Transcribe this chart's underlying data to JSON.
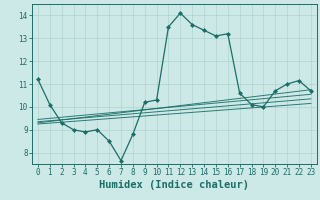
{
  "title": "",
  "xlabel": "Humidex (Indice chaleur)",
  "ylabel": "",
  "bg_color": "#cce9e7",
  "line_color": "#1a6e66",
  "xlim": [
    -0.5,
    23.5
  ],
  "ylim": [
    7.5,
    14.5
  ],
  "xticks": [
    0,
    1,
    2,
    3,
    4,
    5,
    6,
    7,
    8,
    9,
    10,
    11,
    12,
    13,
    14,
    15,
    16,
    17,
    18,
    19,
    20,
    21,
    22,
    23
  ],
  "yticks": [
    8,
    9,
    10,
    11,
    12,
    13,
    14
  ],
  "main_line_x": [
    0,
    1,
    2,
    3,
    4,
    5,
    6,
    7,
    8,
    9,
    10,
    11,
    12,
    13,
    14,
    15,
    16,
    17,
    18,
    19,
    20,
    21,
    22,
    23
  ],
  "main_line_y": [
    11.2,
    10.1,
    9.3,
    9.0,
    8.9,
    9.0,
    8.5,
    7.65,
    8.8,
    10.2,
    10.3,
    13.5,
    14.1,
    13.6,
    13.35,
    13.1,
    13.2,
    10.6,
    10.1,
    10.0,
    10.7,
    11.0,
    11.15,
    10.7
  ],
  "reg_lines": [
    {
      "x": [
        0,
        23
      ],
      "y": [
        9.25,
        10.15
      ]
    },
    {
      "x": [
        0,
        23
      ],
      "y": [
        9.35,
        10.35
      ]
    },
    {
      "x": [
        0,
        23
      ],
      "y": [
        9.45,
        10.55
      ]
    },
    {
      "x": [
        0,
        23
      ],
      "y": [
        9.3,
        10.75
      ]
    }
  ],
  "grid_color": "#aed4d0",
  "tick_fontsize": 5.5,
  "label_fontsize": 7.5
}
